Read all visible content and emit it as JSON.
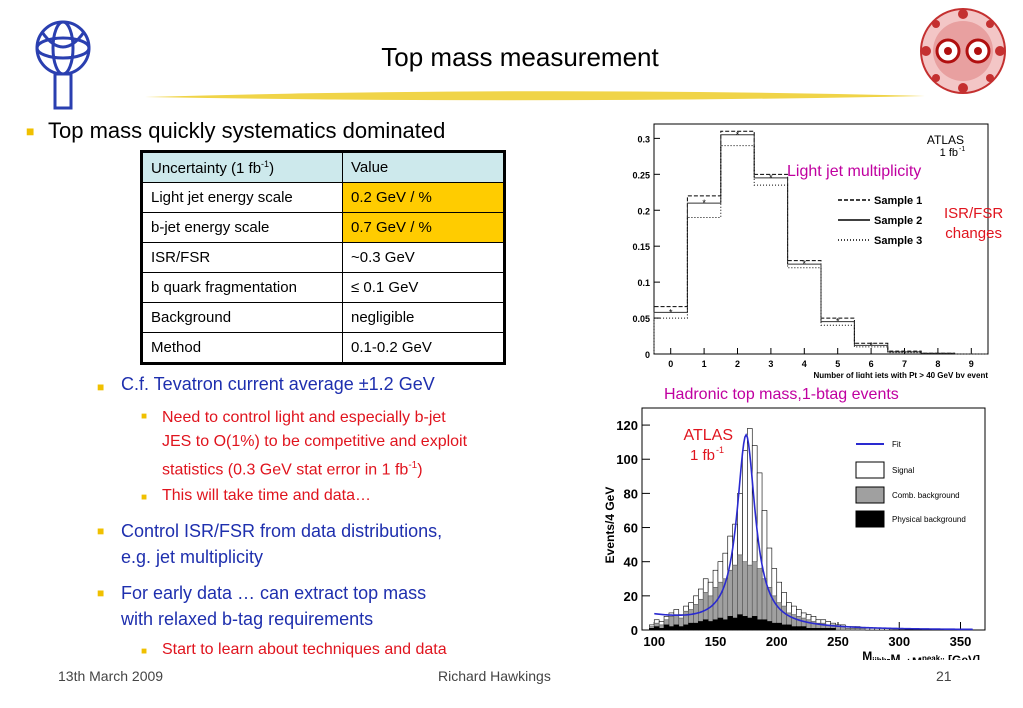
{
  "slide": {
    "title": "Top mass measurement",
    "bullet1": "Top mass quickly systematics dominated",
    "table": {
      "head": {
        "c1_base": "Uncertainty (1 fb",
        "c1_sup": "-1",
        "c1_end": ")",
        "c2": "Value"
      },
      "rows": [
        {
          "label": "Light jet energy scale",
          "value": "0.2 GeV / %"
        },
        {
          "label": "b-jet energy scale",
          "value": "0.7 GeV / %"
        },
        {
          "label": "ISR/FSR",
          "value": "~0.3 GeV"
        },
        {
          "label": "b quark fragmentation",
          "value": "≤ 0.1 GeV"
        },
        {
          "label": "Background",
          "value": "negligible"
        },
        {
          "label": "Method",
          "value": "0.1-0.2 GeV"
        }
      ]
    },
    "sub1": "C.f. Tevatron current average ±1.2 GeV",
    "sub1a_l1": "Need to control light and especially b-jet",
    "sub1a_l2": "JES to O(1%) to be competitive and exploit",
    "sub1a_l3_base": "statistics (0.3 GeV stat error in 1 fb",
    "sub1a_l3_sup": "-1",
    "sub1a_l3_end": ")",
    "sub1b": "This will take time and data…",
    "sub2_l1": "Control ISR/FSR from data distributions,",
    "sub2_l2": "e.g. jet multiplicity",
    "sub3_l1": "For early data … can extract top mass",
    "sub3_l2": "with relaxed b-tag requirements",
    "sub3a": "Start to learn about techniques and data",
    "footer_date": "13th March 2009",
    "footer_author": "Richard Hawkings",
    "footer_page": "21",
    "label_light_jet": "Light jet multiplicity",
    "label_isr_l1": "ISR/FSR",
    "label_isr_l2": "changes",
    "label_hadronic": "Hadronic top mass,1-btag events"
  },
  "chart_data": [
    {
      "type": "line",
      "title": "",
      "xlabel": "Number of light jets with Pt > 40 GeV by event",
      "ylabel": "",
      "xlim": [
        -0.5,
        9.5
      ],
      "ylim": [
        0,
        0.32
      ],
      "xticks": [
        "0",
        "1",
        "2",
        "3",
        "4",
        "5",
        "6",
        "7",
        "8",
        "9"
      ],
      "yticks": [
        "0",
        "0.05",
        "0.1",
        "0.15",
        "0.2",
        "0.25",
        "0.3"
      ],
      "annotation_top": "ATLAS",
      "annotation_lumi_base": "1 fb",
      "annotation_lumi_sup": "-1",
      "categories": [
        0,
        1,
        2,
        3,
        4,
        5,
        6,
        7,
        8,
        9
      ],
      "series": [
        {
          "name": "Sample 1",
          "style": "dashed",
          "values": [
            0.066,
            0.22,
            0.31,
            0.25,
            0.13,
            0.05,
            0.015,
            0.004,
            0.001,
            0.0
          ]
        },
        {
          "name": "Sample 2",
          "style": "solid",
          "values": [
            0.058,
            0.21,
            0.305,
            0.245,
            0.125,
            0.045,
            0.012,
            0.003,
            0.001,
            0.0
          ]
        },
        {
          "name": "Sample 3",
          "style": "dotted",
          "values": [
            0.05,
            0.19,
            0.29,
            0.235,
            0.12,
            0.04,
            0.01,
            0.002,
            0.0,
            0.0
          ]
        }
      ],
      "grid": false,
      "legend": "right"
    },
    {
      "type": "bar",
      "title": "",
      "xlabel_base": "M",
      "xlabel_sub1": "jjhb",
      "xlabel_mid": "-M",
      "xlabel_sub2": "jj",
      "xlabel_plus": "+M",
      "xlabel_sup": "peak",
      "xlabel_sub3": "jj",
      "xlabel_end": " [GeV]",
      "ylabel": "Events/4 GeV",
      "xlim": [
        90,
        370
      ],
      "ylim": [
        0,
        130
      ],
      "xticks": [
        "100",
        "150",
        "200",
        "250",
        "300",
        "350"
      ],
      "yticks": [
        "0",
        "20",
        "40",
        "60",
        "80",
        "100",
        "120"
      ],
      "annotation_top": "ATLAS",
      "annotation_lumi_base": "1 fb",
      "annotation_lumi_sup": "-1",
      "legend_entries": [
        "Fit",
        "Signal",
        "Comb. background",
        "Physical background"
      ],
      "legend": "top-right",
      "fit": {
        "mean": 175,
        "width": 9,
        "amplitude": 112,
        "baseline": 8
      },
      "bins_start": 96,
      "bin_width": 4,
      "total": [
        3,
        6,
        5,
        8,
        10,
        12,
        9,
        14,
        16,
        20,
        24,
        30,
        28,
        35,
        40,
        45,
        55,
        62,
        80,
        105,
        118,
        108,
        92,
        70,
        48,
        36,
        28,
        22,
        16,
        14,
        12,
        10,
        9,
        8,
        6,
        6,
        5,
        4,
        3,
        3,
        2,
        2,
        2,
        1,
        1,
        1,
        1,
        1,
        1,
        0,
        0,
        0,
        0,
        0,
        0,
        0,
        0,
        0,
        0,
        0,
        0,
        0,
        0,
        0,
        0,
        0,
        0,
        0,
        0,
        0
      ],
      "comb": [
        2,
        4,
        3,
        6,
        8,
        9,
        7,
        11,
        12,
        15,
        18,
        22,
        20,
        25,
        28,
        30,
        35,
        38,
        44,
        40,
        38,
        40,
        36,
        30,
        25,
        20,
        16,
        14,
        10,
        9,
        8,
        7,
        6,
        5,
        4,
        4,
        3,
        3,
        2,
        2,
        1,
        1,
        1,
        1,
        0,
        0,
        0,
        0,
        0,
        0,
        0,
        0,
        0,
        0,
        0,
        0,
        0,
        0,
        0,
        0,
        0,
        0,
        0,
        0,
        0,
        0,
        0,
        0,
        0,
        0
      ],
      "phys": [
        1,
        2,
        1,
        3,
        2,
        3,
        2,
        3,
        4,
        4,
        5,
        6,
        5,
        6,
        7,
        6,
        8,
        7,
        9,
        8,
        7,
        8,
        6,
        6,
        5,
        4,
        4,
        3,
        3,
        2,
        2,
        2,
        1,
        1,
        1,
        1,
        1,
        1,
        0,
        0,
        0,
        0,
        0,
        0,
        0,
        0,
        0,
        0,
        0,
        0,
        0,
        0,
        0,
        0,
        0,
        0,
        0,
        0,
        0,
        0,
        0,
        0,
        0,
        0,
        0,
        0,
        0,
        0,
        0,
        0
      ]
    }
  ]
}
